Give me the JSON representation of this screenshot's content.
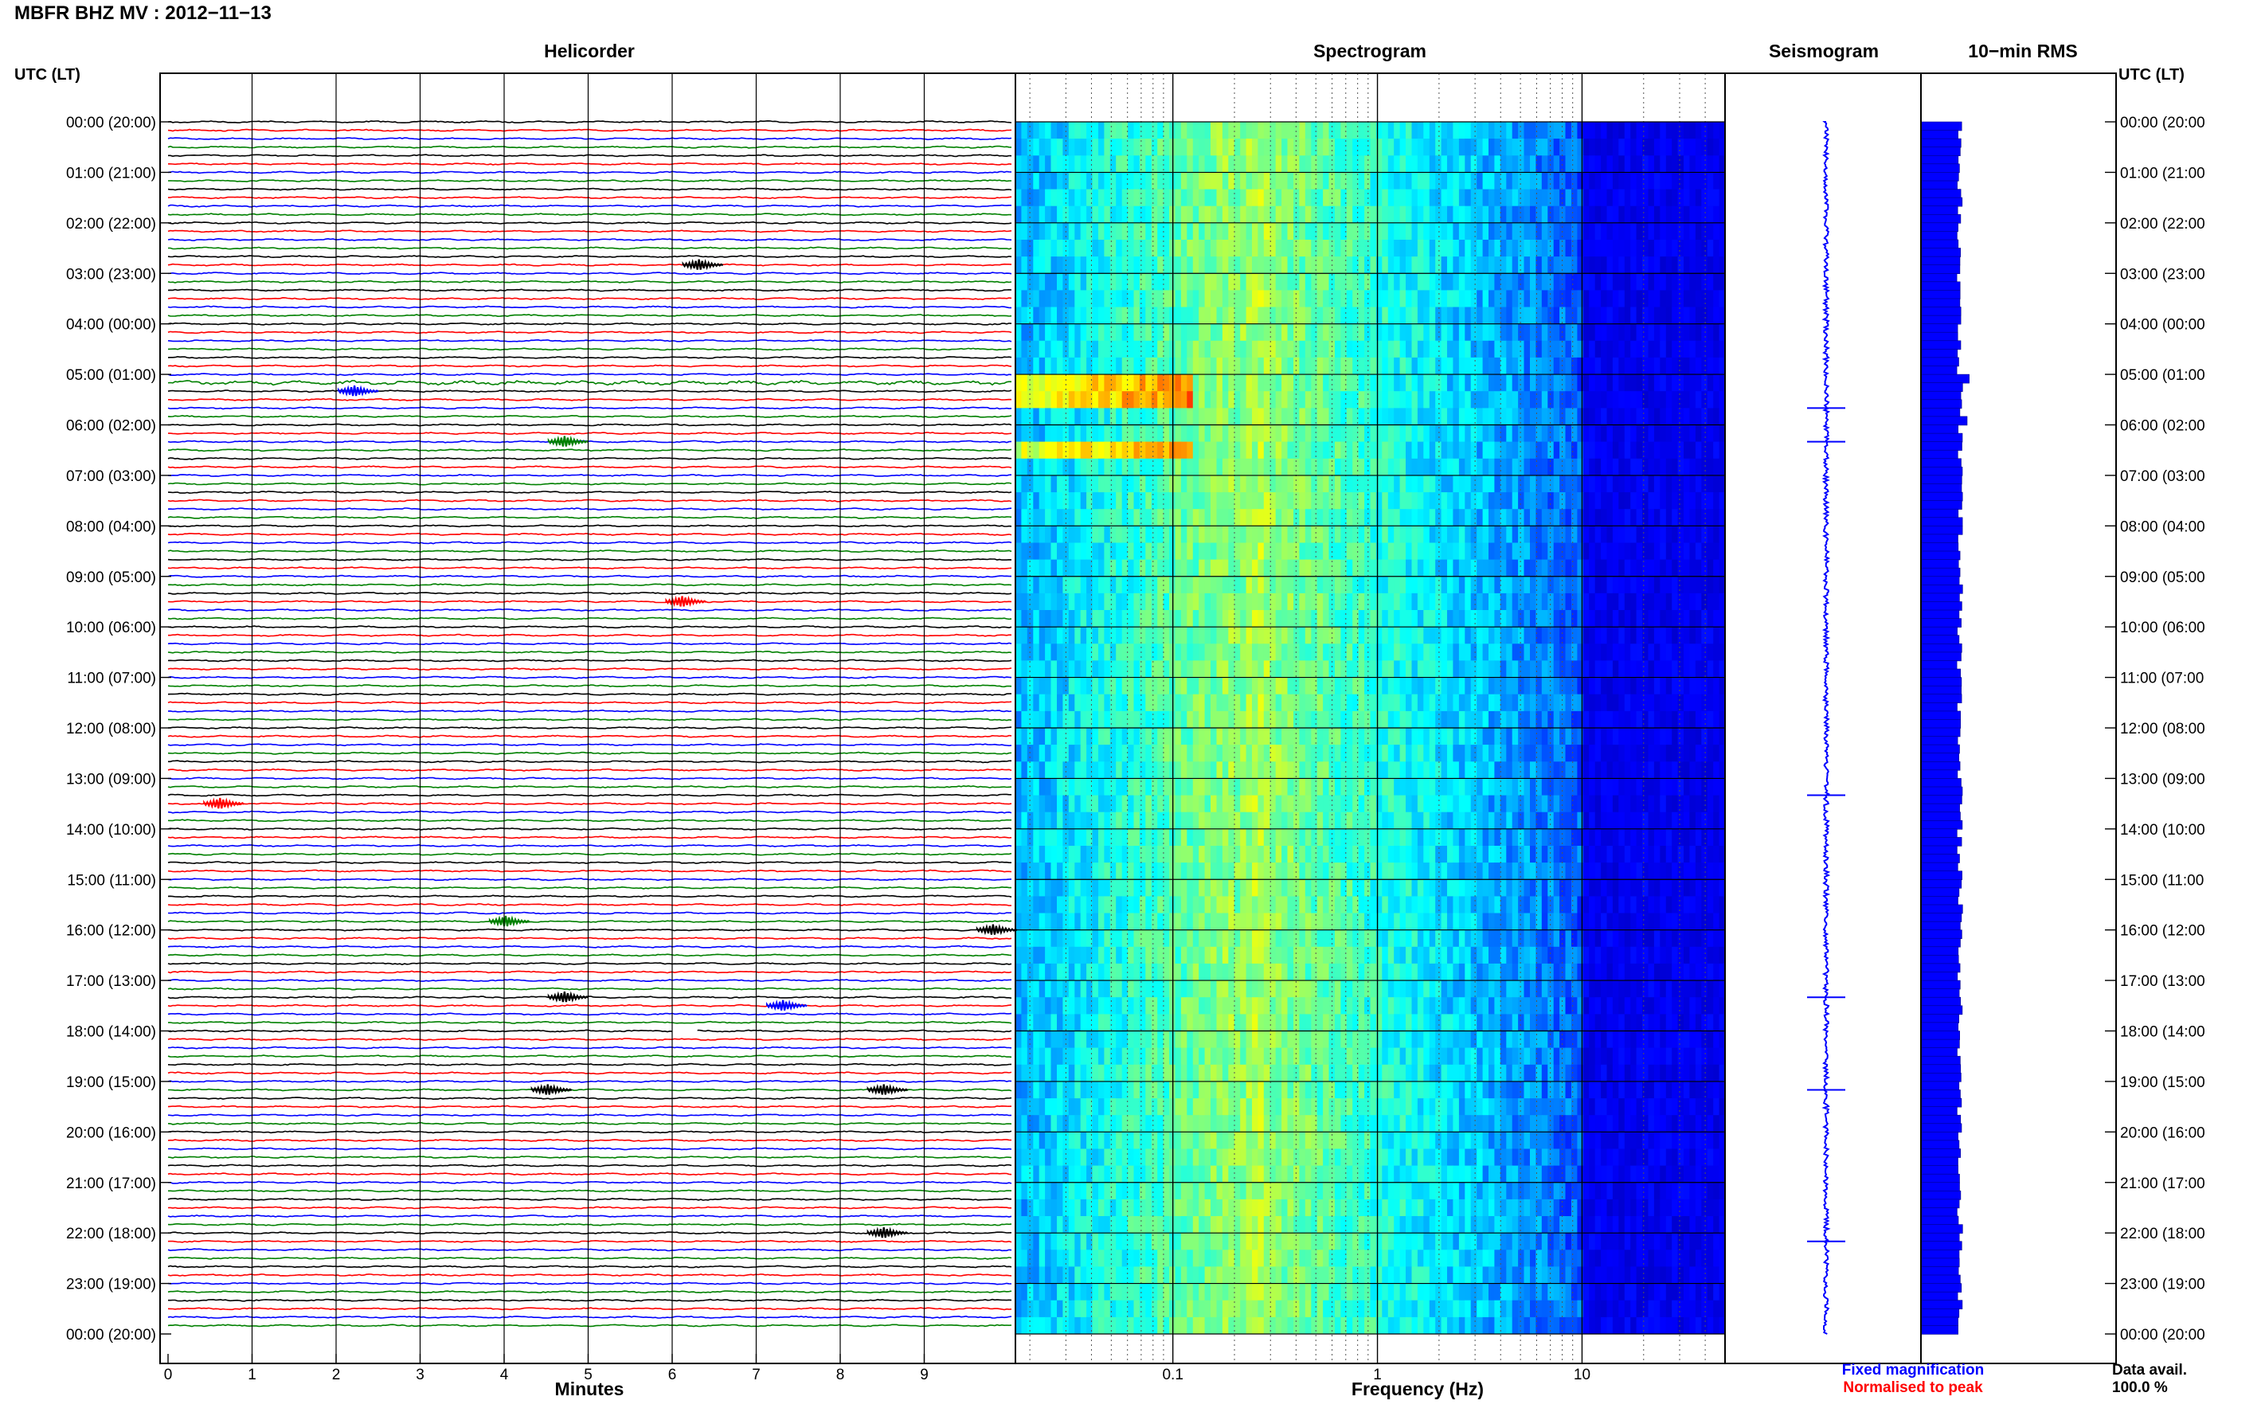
{
  "header": {
    "title": "MBFR BHZ MV : 2012−11−13"
  },
  "panels": {
    "helicorder": "Helicorder",
    "spectrogram": "Spectrogram",
    "seismogram": "Seismogram",
    "rms": "10−min RMS"
  },
  "axes": {
    "left_time_label": "UTC (LT)",
    "right_time_label": "UTC (LT)",
    "minutes_label": "Minutes",
    "frequency_label": "Frequency (Hz)"
  },
  "legend": {
    "fixed": "Fixed magnification",
    "normalised": "Normalised to peak",
    "fixed_color": "#0000ff",
    "normalised_color": "#ff0000"
  },
  "data_avail": {
    "label": "Data avail.",
    "value": "100.0 %"
  },
  "chart_data": [
    {
      "type": "line",
      "name": "helicorder",
      "xlabel": "Minutes",
      "x_ticks": [
        "0",
        "1",
        "2",
        "3",
        "4",
        "5",
        "6",
        "7",
        "8",
        "9"
      ],
      "xlim": [
        0,
        10
      ],
      "rows_per_hour": 6,
      "trace_colors": [
        "#000000",
        "#ff0000",
        "#0000ff",
        "#008000"
      ],
      "y_ticks": [
        "00:00 (20:00)",
        "01:00 (21:00)",
        "02:00 (22:00)",
        "03:00 (23:00)",
        "04:00 (00:00)",
        "05:00 (01:00)",
        "06:00 (02:00)",
        "07:00 (03:00)",
        "08:00 (04:00)",
        "09:00 (05:00)",
        "10:00 (06:00)",
        "11:00 (07:00)",
        "12:00 (08:00)",
        "13:00 (09:00)",
        "14:00 (10:00)",
        "15:00 (11:00)",
        "16:00 (12:00)",
        "17:00 (13:00)",
        "18:00 (14:00)",
        "19:00 (15:00)",
        "20:00 (16:00)",
        "21:00 (17:00)",
        "22:00 (18:00)",
        "23:00 (19:00)",
        "00:00 (20:00)"
      ],
      "events": [
        {
          "time": "05:20",
          "minute": 2.2,
          "color": "#0000ff"
        },
        {
          "time": "06:20",
          "minute": 4.7,
          "color": "#008000"
        },
        {
          "time": "02:50",
          "minute": 6.3,
          "color": "#000000"
        },
        {
          "time": "09:30",
          "minute": 6.1,
          "color": "#ff0000"
        },
        {
          "time": "13:30",
          "minute": 0.6,
          "color": "#ff0000"
        },
        {
          "time": "15:50",
          "minute": 4.0,
          "color": "#008000"
        },
        {
          "time": "16:00",
          "minute": 9.8,
          "color": "#000000"
        },
        {
          "time": "17:20",
          "minute": 4.7,
          "color": "#000000"
        },
        {
          "time": "17:30",
          "minute": 7.3,
          "color": "#0000ff"
        },
        {
          "time": "19:10",
          "minute": 4.5,
          "color": "#000000"
        },
        {
          "time": "19:10",
          "minute": 8.5,
          "color": "#000000"
        },
        {
          "time": "22:00",
          "minute": 8.5,
          "color": "#000000"
        }
      ],
      "gap": {
        "time": "18:00",
        "minute_start": 6.0,
        "minute_end": 6.3
      }
    },
    {
      "type": "heatmap",
      "name": "spectrogram",
      "xlabel": "Frequency (Hz)",
      "x_scale": "log",
      "xlim": [
        0.017,
        50
      ],
      "x_ticks": [
        0.1,
        1,
        10
      ],
      "x_tick_labels": [
        "0.1",
        "1",
        "10"
      ],
      "peak_band_hz": [
        0.2,
        0.35
      ],
      "event_rows": [
        "05:00",
        "06:20"
      ]
    },
    {
      "type": "line",
      "name": "seismogram",
      "spikes": [
        "05:40",
        "06:20",
        "13:20",
        "17:20",
        "19:10",
        "22:10"
      ]
    },
    {
      "type": "bar",
      "name": "rms_10min",
      "orientation": "horizontal",
      "baseline_level": 0.33,
      "peaks": [
        {
          "time": "05:00",
          "level": 0.45
        },
        {
          "time": "05:50",
          "level": 0.42
        }
      ]
    }
  ]
}
